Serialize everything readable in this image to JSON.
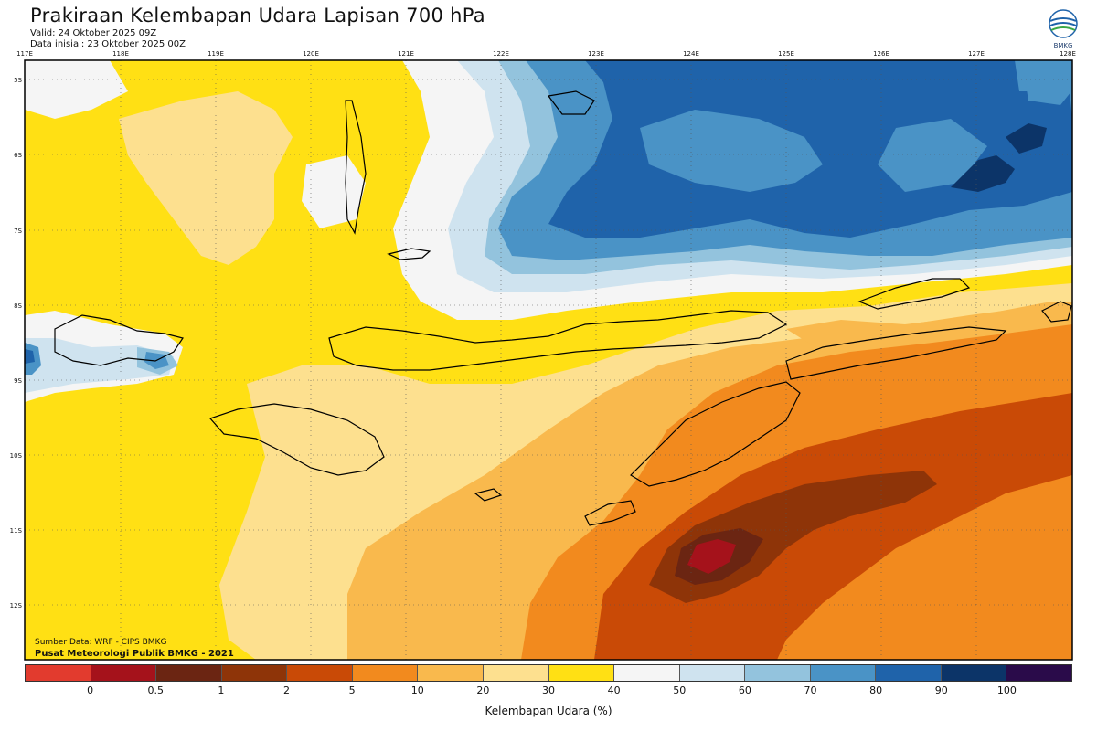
{
  "header": {
    "title": "Prakiraan Kelembapan Udara Lapisan 700 hPa",
    "valid": "Valid: 24 Oktober 2025 09Z",
    "initial": "Data inisial: 23 Oktober 2025 00Z"
  },
  "logo": {
    "text": "BMKG",
    "icon": "bmkg-logo-icon"
  },
  "axes": {
    "lon_labels": [
      "117E",
      "118E",
      "119E",
      "120E",
      "121E",
      "122E",
      "123E",
      "124E",
      "125E",
      "126E",
      "127E",
      "128E"
    ],
    "lat_labels": [
      "5S",
      "6S",
      "7S",
      "8S",
      "9S",
      "10S",
      "11S",
      "12S"
    ]
  },
  "source": {
    "line1": "Sumber Data: WRF - CIPS BMKG",
    "line2": "Pusat Meteorologi Publik BMKG - 2021"
  },
  "colorbar": {
    "colors": [
      "#e23b2e",
      "#a5121b",
      "#6b2512",
      "#8e3408",
      "#c94a06",
      "#f28a1e",
      "#f9b94d",
      "#fde08f",
      "#ffe014",
      "#f5f5f5",
      "#cfe3ef",
      "#93c3dd",
      "#4a93c6",
      "#1f63aa",
      "#0c3468",
      "#2a0b4a"
    ],
    "ticks": [
      "0",
      "0.5",
      "1",
      "2",
      "5",
      "10",
      "20",
      "30",
      "40",
      "50",
      "60",
      "70",
      "80",
      "90",
      "100"
    ],
    "label": "Kelembapan Udara (%)"
  },
  "colors": {
    "yellow": "#ffe014",
    "pale_yellow": "#fde08f",
    "light_orange": "#f9b94d",
    "orange": "#f28a1e",
    "dark_orange": "#c94a06",
    "brown": "#8e3408",
    "dark_brown": "#6b2512",
    "red": "#a5121b",
    "white": "#f5f5f5",
    "pale_blue": "#cfe3ef",
    "light_blue": "#93c3dd",
    "mid_blue": "#4a93c6",
    "blue": "#1f63aa",
    "navy": "#0c3468"
  }
}
